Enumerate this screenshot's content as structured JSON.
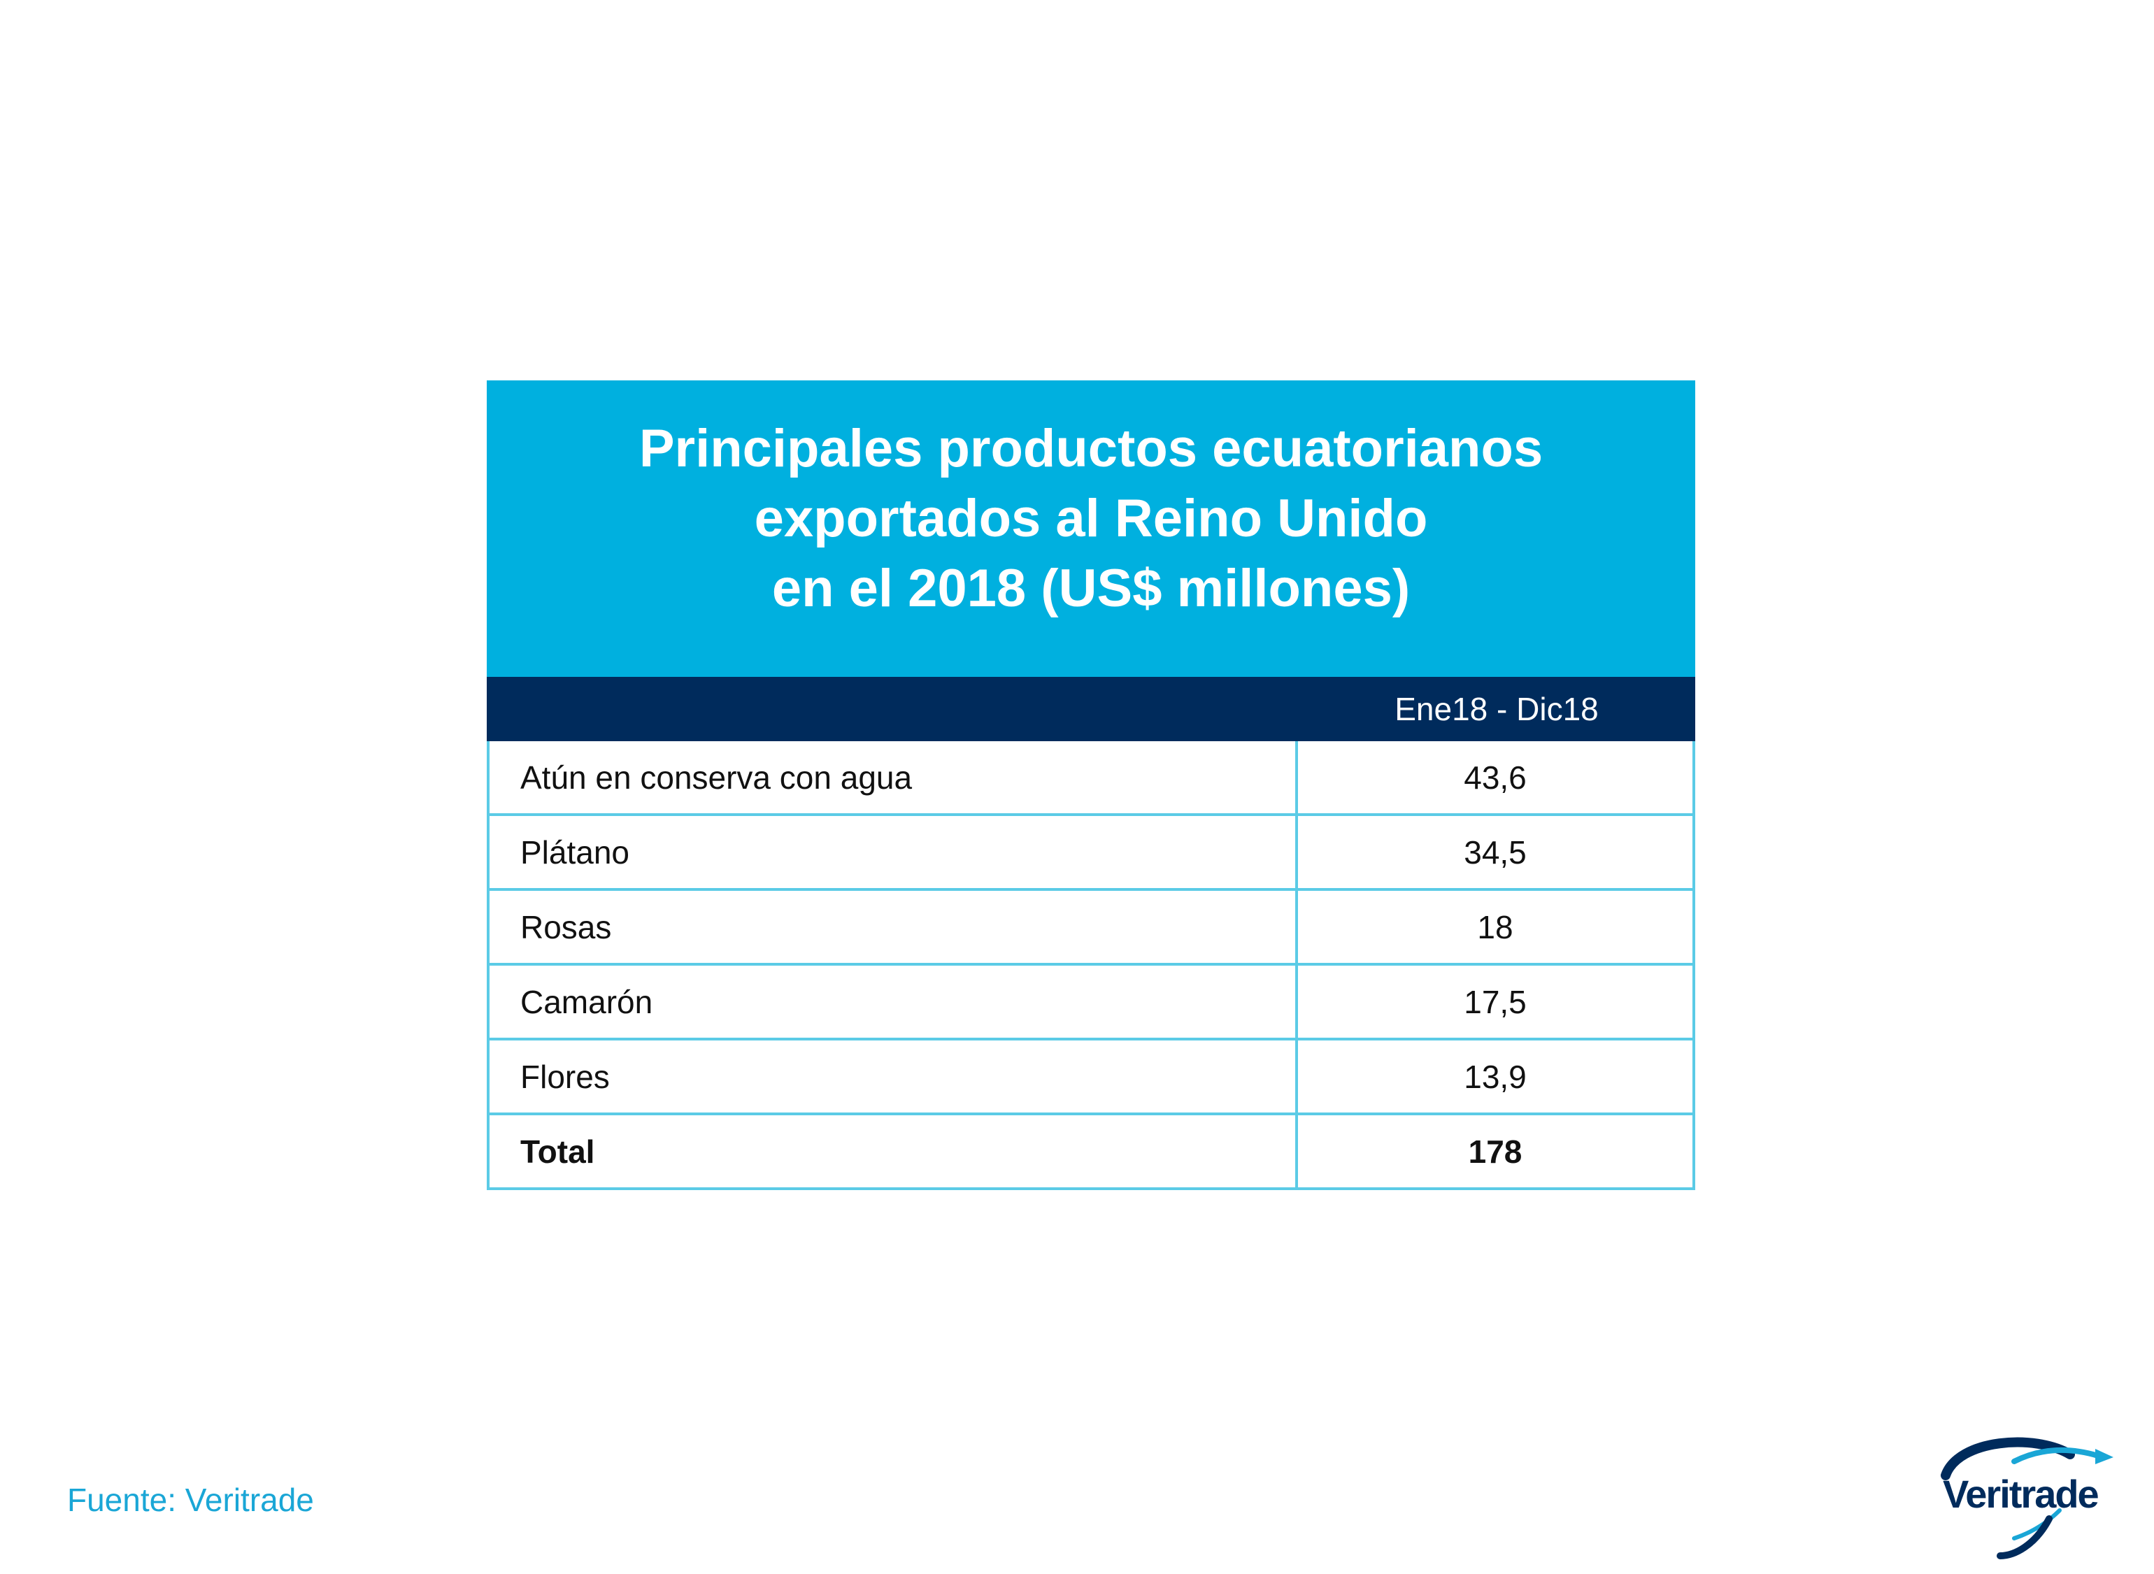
{
  "chart_data": {
    "type": "table",
    "title": "Principales productos ecuatorianos\nexportados al Reino Unido\nen el 2018 (US$ millones)",
    "columns": [
      "",
      "Ene18 - Dic18"
    ],
    "rows": [
      {
        "label": "Atún en conserva con agua",
        "value": "43,6"
      },
      {
        "label": "Plátano",
        "value": "34,5"
      },
      {
        "label": "Rosas",
        "value": "18"
      },
      {
        "label": "Camarón",
        "value": "17,5"
      },
      {
        "label": "Flores",
        "value": "13,9"
      }
    ],
    "total": {
      "label": "Total",
      "value": "178"
    }
  },
  "footer": {
    "source": "Fuente: Veritrade"
  },
  "logo": {
    "text": "Veritrade",
    "icon": "veritrade-swoosh-icon",
    "colors": {
      "dark": "#002b5c",
      "light": "#1aa6d6"
    }
  },
  "colors": {
    "title_band": "#00b0df",
    "header_band": "#002b5c",
    "grid": "#5bcbe6",
    "source_text": "#1aa6d6"
  }
}
